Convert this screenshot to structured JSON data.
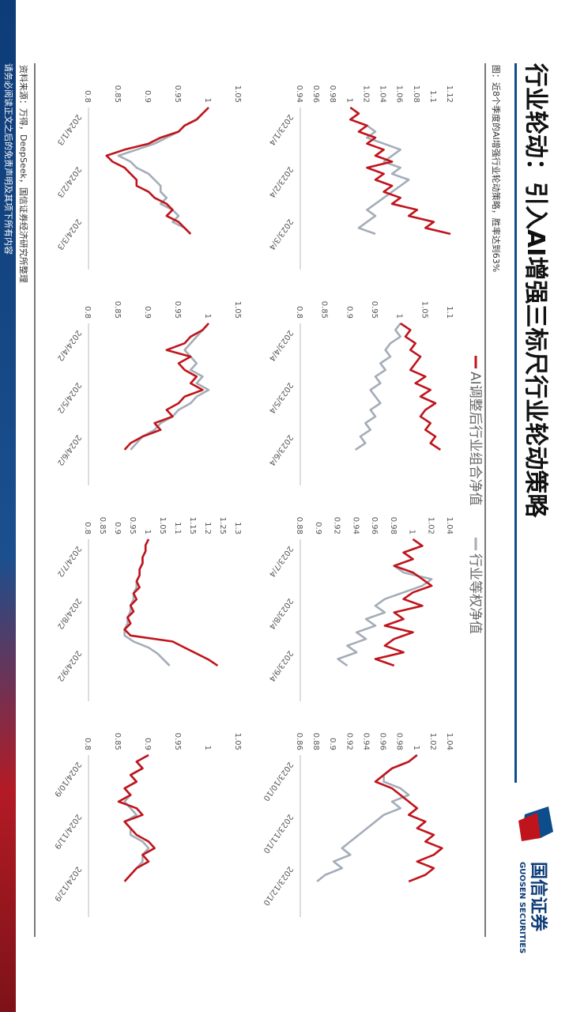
{
  "header": {
    "title": "行业轮动：引入AI增强三标尺行业轮动策略",
    "figure_caption": "图：近8个季度的AI增强行业轮动策略，胜率达到63%"
  },
  "legend": {
    "items": [
      {
        "label": "AI调整后行业组合净值",
        "color": "#c0141c"
      },
      {
        "label": "行业等权净值",
        "color": "#a4adb8"
      }
    ]
  },
  "source_note": "资料来源：万得，DeepSeek，国信证券经济研究所整理",
  "side_banner": {
    "text": "请务必阅读正文之后的免责声明及其项下所有内容",
    "colors": {
      "top": "#0d3c78",
      "bottom": "#b31b25"
    }
  },
  "logo": {
    "brand_cn": "国信证券",
    "brand_en": "GUOSEN SECURITIES"
  },
  "colors": {
    "ai": "#c0141c",
    "equal": "#a4adb8",
    "accent_blue": "#0d4d8c"
  },
  "chart_data": [
    {
      "type": "line",
      "position": "row1-col1",
      "x_ticks": [
        "2023/1/4",
        "2023/2/4",
        "2023/3/4"
      ],
      "y_ticks": [
        "0.94",
        "0.96",
        "0.98",
        "1",
        "1.02",
        "1.04",
        "1.06",
        "1.08",
        "1.1",
        "1.12"
      ],
      "ylim": [
        0.94,
        1.12
      ],
      "series": [
        {
          "name": "AI调整后行业组合净值",
          "values": [
            1.0,
            1.01,
            1.0,
            1.02,
            1.01,
            1.03,
            1.02,
            1.04,
            1.03,
            1.05,
            1.02,
            1.04,
            1.03,
            1.05,
            1.04,
            1.06,
            1.05,
            1.08,
            1.07,
            1.1,
            1.09,
            1.12
          ]
        },
        {
          "name": "行业等权净值",
          "values": [
            1.0,
            1.01,
            1.0,
            1.02,
            1.03,
            1.02,
            1.04,
            1.06,
            1.05,
            1.04,
            1.06,
            1.05,
            1.07,
            1.06,
            1.05,
            1.04,
            1.03,
            1.02,
            1.03,
            1.02,
            1.01,
            1.03
          ]
        }
      ]
    },
    {
      "type": "line",
      "position": "row1-col2",
      "x_ticks": [
        "2023/4/4",
        "2023/5/4",
        "2023/6/4"
      ],
      "y_ticks": [
        "0.8",
        "0.85",
        "0.9",
        "0.95",
        "1",
        "1.05",
        "1.1"
      ],
      "ylim": [
        0.8,
        1.1
      ],
      "series": [
        {
          "name": "AI调整后行业组合净值",
          "values": [
            1.0,
            1.02,
            1.01,
            1.03,
            1.02,
            1.04,
            1.03,
            1.02,
            1.05,
            1.03,
            1.06,
            1.04,
            1.07,
            1.05,
            1.04,
            1.06,
            1.05,
            1.07,
            1.06,
            1.08
          ]
        },
        {
          "name": "行业等权净值",
          "values": [
            1.0,
            0.99,
            1.0,
            0.98,
            0.97,
            0.98,
            0.96,
            0.97,
            0.95,
            0.96,
            0.94,
            0.95,
            0.96,
            0.94,
            0.95,
            0.93,
            0.94,
            0.92,
            0.93,
            0.91
          ]
        }
      ]
    },
    {
      "type": "line",
      "position": "row1-col3",
      "x_ticks": [
        "2023/7/4",
        "2023/8/4",
        "2023/9/4"
      ],
      "y_ticks": [
        "0.88",
        "0.9",
        "0.92",
        "0.94",
        "0.96",
        "0.98",
        "1",
        "1.02",
        "1.04"
      ],
      "ylim": [
        0.88,
        1.04
      ],
      "series": [
        {
          "name": "AI调整后行业组合净值",
          "values": [
            1.0,
            1.01,
            0.99,
            1.0,
            0.98,
            1.0,
            1.01,
            1.02,
            1.0,
            0.99,
            1.01,
            0.98,
            0.99,
            0.97,
            1.0,
            0.98,
            0.97,
            0.99,
            0.96,
            0.98
          ]
        },
        {
          "name": "行业等权净值",
          "values": [
            1.0,
            1.01,
            0.99,
            1.0,
            0.98,
            0.99,
            1.02,
            1.01,
            0.99,
            0.97,
            0.96,
            0.97,
            0.95,
            0.96,
            0.94,
            0.95,
            0.93,
            0.94,
            0.92,
            0.93
          ]
        }
      ]
    },
    {
      "type": "line",
      "position": "row1-col4",
      "x_ticks": [
        "2023/10/10",
        "2023/11/10",
        "2023/12/10"
      ],
      "y_ticks": [
        "0.86",
        "0.88",
        "0.9",
        "0.92",
        "0.94",
        "0.96",
        "0.98",
        "1",
        "1.02",
        "1.04"
      ],
      "ylim": [
        0.86,
        1.04
      ],
      "series": [
        {
          "name": "AI调整后行业组合净值",
          "values": [
            1.0,
            0.99,
            0.97,
            0.96,
            0.95,
            0.97,
            0.98,
            0.99,
            1.0,
            0.99,
            1.01,
            1.0,
            1.02,
            1.01,
            1.03,
            1.02,
            1.0,
            1.02,
            1.01,
            0.99
          ]
        },
        {
          "name": "行业等权净值",
          "values": [
            1.0,
            0.99,
            0.97,
            0.96,
            0.96,
            0.98,
            0.99,
            0.97,
            0.98,
            0.96,
            0.95,
            0.94,
            0.93,
            0.92,
            0.91,
            0.92,
            0.9,
            0.91,
            0.89,
            0.88
          ]
        }
      ]
    },
    {
      "type": "line",
      "position": "row2-col1",
      "x_ticks": [
        "2024/1/3",
        "2024/2/3",
        "2024/3/3"
      ],
      "y_ticks": [
        "0.8",
        "0.85",
        "0.9",
        "0.95",
        "1",
        "1.05"
      ],
      "ylim": [
        0.8,
        1.05
      ],
      "series": [
        {
          "name": "AI调整后行业组合净值",
          "values": [
            1.0,
            0.99,
            0.98,
            0.96,
            0.95,
            0.92,
            0.9,
            0.86,
            0.83,
            0.84,
            0.86,
            0.87,
            0.88,
            0.88,
            0.9,
            0.91,
            0.93,
            0.94,
            0.93,
            0.95,
            0.96,
            0.97
          ]
        },
        {
          "name": "行业等权净值",
          "values": [
            1.0,
            0.99,
            0.98,
            0.96,
            0.95,
            0.93,
            0.91,
            0.88,
            0.85,
            0.87,
            0.88,
            0.9,
            0.91,
            0.92,
            0.92,
            0.93,
            0.92,
            0.94,
            0.95,
            0.94,
            0.96,
            0.97
          ]
        }
      ]
    },
    {
      "type": "line",
      "position": "row2-col2",
      "x_ticks": [
        "2024/4/2",
        "2024/5/2",
        "2024/6/2"
      ],
      "y_ticks": [
        "0.8",
        "0.85",
        "0.9",
        "0.95",
        "1",
        "1.05"
      ],
      "ylim": [
        0.8,
        1.05
      ],
      "series": [
        {
          "name": "AI调整后行业组合净值",
          "values": [
            1.0,
            0.99,
            0.97,
            0.96,
            0.93,
            0.97,
            0.95,
            0.96,
            0.98,
            0.97,
            0.99,
            0.96,
            0.95,
            0.93,
            0.94,
            0.91,
            0.92,
            0.89,
            0.87,
            0.86
          ]
        },
        {
          "name": "行业等权净值",
          "values": [
            1.0,
            0.99,
            0.98,
            0.97,
            0.96,
            0.97,
            0.98,
            0.97,
            0.99,
            0.98,
            1.0,
            0.98,
            0.97,
            0.95,
            0.94,
            0.92,
            0.91,
            0.89,
            0.88,
            0.87
          ]
        }
      ]
    },
    {
      "type": "line",
      "position": "row2-col3",
      "x_ticks": [
        "2024/7/2",
        "2024/8/2",
        "2024/9/2"
      ],
      "y_ticks": [
        "0.8",
        "0.85",
        "0.9",
        "0.95",
        "1",
        "1.05",
        "1.1",
        "1.15",
        "1.2",
        "1.25",
        "1.3"
      ],
      "ylim": [
        0.8,
        1.3
      ],
      "series": [
        {
          "name": "AI调整后行业组合净值",
          "values": [
            1.0,
            0.99,
            0.99,
            0.98,
            0.98,
            0.97,
            0.97,
            0.96,
            0.97,
            0.95,
            0.96,
            0.94,
            0.95,
            0.93,
            0.94,
            0.92,
            0.94,
            1.08,
            1.12,
            1.16,
            1.2,
            1.23
          ]
        },
        {
          "name": "行业等权净值",
          "values": [
            1.0,
            0.99,
            0.99,
            0.98,
            0.98,
            0.97,
            0.97,
            0.96,
            0.96,
            0.95,
            0.95,
            0.94,
            0.94,
            0.93,
            0.93,
            0.92,
            0.92,
            0.95,
            1.0,
            1.03,
            1.05,
            1.07
          ]
        }
      ]
    },
    {
      "type": "line",
      "position": "row2-col4",
      "x_ticks": [
        "2024/10/9",
        "2024/11/9",
        "2024/12/9"
      ],
      "y_ticks": [
        "0.8",
        "0.85",
        "0.9",
        "0.95",
        "1",
        "1.05"
      ],
      "ylim": [
        0.8,
        1.05
      ],
      "series": [
        {
          "name": "AI调整后行业组合净值",
          "values": [
            0.9,
            0.88,
            0.89,
            0.87,
            0.88,
            0.86,
            0.87,
            0.85,
            0.88,
            0.89,
            0.86,
            0.87,
            0.88,
            0.9,
            0.91,
            0.89,
            0.9,
            0.88,
            0.87,
            0.86
          ]
        },
        {
          "name": "行业等权净值",
          "values": [
            0.9,
            0.88,
            0.89,
            0.87,
            0.88,
            0.86,
            0.87,
            0.86,
            0.87,
            0.88,
            0.86,
            0.87,
            0.87,
            0.89,
            0.9,
            0.89,
            0.89,
            0.88,
            0.87,
            0.86
          ]
        }
      ]
    }
  ]
}
